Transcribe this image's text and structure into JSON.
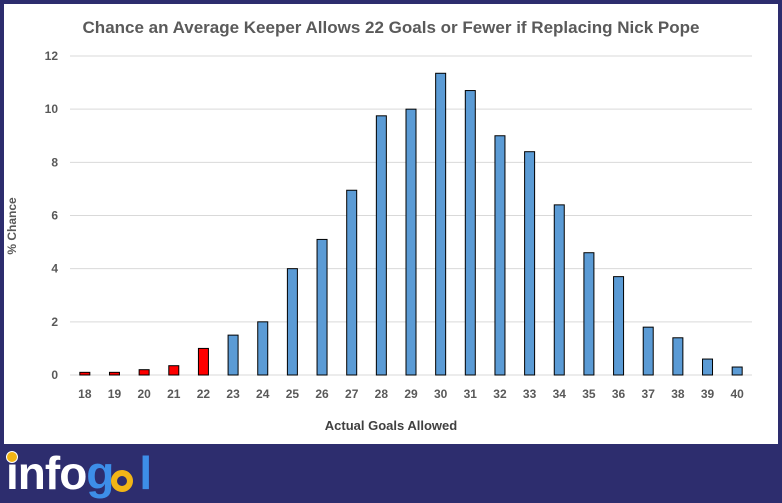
{
  "chart_data": {
    "type": "bar",
    "title": "Chance an Average Keeper Allows 22 Goals or Fewer if Replacing Nick Pope",
    "xlabel": "Actual Goals Allowed",
    "ylabel": "% Chance",
    "categories": [
      "18",
      "19",
      "20",
      "21",
      "22",
      "23",
      "24",
      "25",
      "26",
      "27",
      "28",
      "29",
      "30",
      "31",
      "32",
      "33",
      "34",
      "35",
      "36",
      "37",
      "38",
      "39",
      "40"
    ],
    "values": [
      0.1,
      0.1,
      0.2,
      0.35,
      1.0,
      1.5,
      2.0,
      4.0,
      5.1,
      6.95,
      9.75,
      10.0,
      11.35,
      10.7,
      9.0,
      8.4,
      6.4,
      4.6,
      3.7,
      1.8,
      1.4,
      0.6,
      0.3
    ],
    "highlight_categories": [
      "18",
      "19",
      "20",
      "21",
      "22"
    ],
    "ylim": [
      0,
      12
    ],
    "yticks": [
      "0",
      "2",
      "4",
      "6",
      "8",
      "10",
      "12"
    ],
    "grid": true,
    "colors": {
      "bar": "#5b9bd5",
      "highlight": "#ff0000",
      "outline": "#000000",
      "grid": "#d9d9d9"
    }
  },
  "brand": {
    "logo_text_1": "info",
    "logo_text_2": "g",
    "logo_text_3": "l",
    "colors": {
      "background": "#2d2d6e",
      "white": "#ffffff",
      "blue": "#3d8ee8",
      "gold": "#f2b516"
    }
  }
}
